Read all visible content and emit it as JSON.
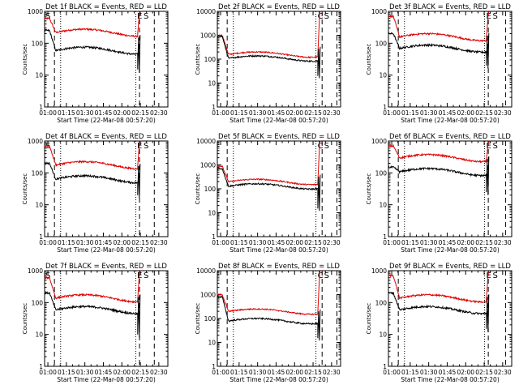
{
  "figure": {
    "xlabel": "Start Time (22-Mar-08 00:57:20)",
    "ylabel": "Counts/sec",
    "xticks": [
      "01:00",
      "01:15",
      "01:30",
      "01:45",
      "02:00",
      "02:15",
      "02:30"
    ],
    "title_suffix": "BLACK = Events, RED = LLD",
    "colors": {
      "events": "#000000",
      "lld": "#e00000",
      "axes": "#000000"
    },
    "y_scale": "log"
  },
  "chart_data": [
    {
      "type": "line",
      "title": "Det 1f BLACK = Events, RED = LLD",
      "ylim": [
        1,
        1000
      ],
      "yticks": [
        "1",
        "10",
        "100",
        "1000"
      ],
      "flags": [
        "S",
        "E",
        "S"
      ],
      "xlim_minutes": [
        0,
        100
      ],
      "events_level": 60,
      "lld_level": 220,
      "events_start": 250,
      "lld_start": 600,
      "spike_min": 15,
      "vlines_dashed": [
        8,
        77,
        89
      ],
      "vlines_dotted": [
        13,
        74
      ]
    },
    {
      "type": "line",
      "title": "Det 2f BLACK = Events, RED = LLD",
      "ylim": [
        1,
        10000
      ],
      "yticks": [
        "1",
        "10",
        "100",
        "1000",
        "10000"
      ],
      "flags": [
        "C",
        "S"
      ],
      "xlim_minutes": [
        0,
        100
      ],
      "events_level": 110,
      "lld_level": 160,
      "events_start": 900,
      "lld_start": 1000,
      "spike_min": 20,
      "vlines_dashed": [
        8,
        85,
        97
      ],
      "vlines_dotted": [
        13,
        80
      ]
    },
    {
      "type": "line",
      "title": "Det 3f BLACK = Events, RED = LLD",
      "ylim": [
        1,
        1000
      ],
      "yticks": [
        "1",
        "10",
        "100",
        "1000"
      ],
      "flags": [
        "E",
        "S"
      ],
      "xlim_minutes": [
        0,
        100
      ],
      "events_level": 70,
      "lld_level": 160,
      "events_start": 200,
      "lld_start": 700,
      "spike_min": 20,
      "vlines_dashed": [
        8,
        81,
        95
      ],
      "vlines_dotted": [
        13,
        78
      ]
    },
    {
      "type": "line",
      "title": "Det 4f BLACK = Events, RED = LLD",
      "ylim": [
        1,
        1000
      ],
      "yticks": [
        "1",
        "10",
        "100",
        "1000"
      ],
      "flags": [
        "S",
        "E",
        "S"
      ],
      "xlim_minutes": [
        0,
        100
      ],
      "events_level": 65,
      "lld_level": 180,
      "events_start": 200,
      "lld_start": 700,
      "spike_min": 20,
      "vlines_dashed": [
        8,
        77,
        89
      ],
      "vlines_dotted": [
        13,
        74
      ]
    },
    {
      "type": "line",
      "title": "Det 5f BLACK = Events, RED = LLD",
      "ylim": [
        1,
        10000
      ],
      "yticks": [
        "1",
        "10",
        "100",
        "1000",
        "10000"
      ],
      "flags": [
        "C",
        "S"
      ],
      "xlim_minutes": [
        0,
        100
      ],
      "events_level": 130,
      "lld_level": 200,
      "events_start": 700,
      "lld_start": 900,
      "spike_min": 15,
      "vlines_dashed": [
        8,
        85,
        97
      ],
      "vlines_dotted": [
        13,
        80
      ]
    },
    {
      "type": "line",
      "title": "Det 6f BLACK = Events, RED = LLD",
      "ylim": [
        1,
        1000
      ],
      "yticks": [
        "1",
        "10",
        "100",
        "1000"
      ],
      "flags": [
        "E",
        "S"
      ],
      "xlim_minutes": [
        0,
        100
      ],
      "events_level": 110,
      "lld_level": 300,
      "events_start": 150,
      "lld_start": 700,
      "spike_min": 25,
      "vlines_dashed": [
        8,
        81,
        95
      ],
      "vlines_dotted": [
        13,
        78
      ]
    },
    {
      "type": "line",
      "title": "Det 7f BLACK = Events, RED = LLD",
      "ylim": [
        1,
        1000
      ],
      "yticks": [
        "1",
        "10",
        "100",
        "1000"
      ],
      "flags": [
        "S",
        "E",
        "S"
      ],
      "xlim_minutes": [
        0,
        100
      ],
      "events_level": 60,
      "lld_level": 140,
      "events_start": 200,
      "lld_start": 600,
      "spike_min": 10,
      "vlines_dashed": [
        8,
        77,
        89
      ],
      "vlines_dotted": [
        13,
        74
      ]
    },
    {
      "type": "line",
      "title": "Det 8f BLACK = Events, RED = LLD",
      "ylim": [
        1,
        10000
      ],
      "yticks": [
        "1",
        "10",
        "100",
        "1000",
        "10000"
      ],
      "flags": [
        "C",
        "S"
      ],
      "xlim_minutes": [
        0,
        100
      ],
      "events_level": 80,
      "lld_level": 200,
      "events_start": 800,
      "lld_start": 1000,
      "spike_min": 15,
      "vlines_dashed": [
        8,
        85,
        97
      ],
      "vlines_dotted": [
        13,
        80
      ]
    },
    {
      "type": "line",
      "title": "Det 9f BLACK = Events, RED = LLD",
      "ylim": [
        1,
        1000
      ],
      "yticks": [
        "1",
        "10",
        "100",
        "1000"
      ],
      "flags": [
        "E",
        "S"
      ],
      "xlim_minutes": [
        0,
        100
      ],
      "events_level": 60,
      "lld_level": 140,
      "events_start": 200,
      "lld_start": 700,
      "spike_min": 15,
      "vlines_dashed": [
        8,
        81,
        95
      ],
      "vlines_dotted": [
        13,
        78
      ]
    }
  ]
}
